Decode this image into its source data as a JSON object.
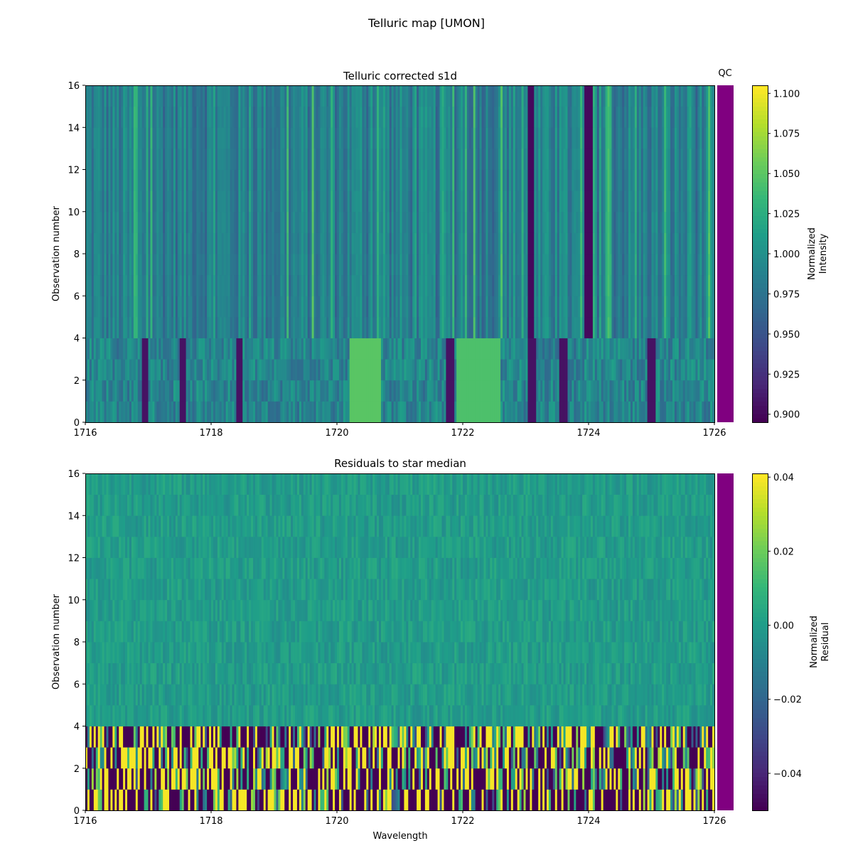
{
  "figure": {
    "title": "Telluric map [UMON]"
  },
  "chart_data": [
    {
      "type": "heatmap",
      "title": "Telluric corrected s1d",
      "xlabel": "",
      "ylabel": "Observation number",
      "xlim": [
        1716,
        1726
      ],
      "ylim": [
        0,
        16
      ],
      "xticks": [
        1716,
        1718,
        1720,
        1722,
        1724,
        1726
      ],
      "yticks": [
        0,
        2,
        4,
        6,
        8,
        10,
        12,
        14,
        16
      ],
      "colormap": "viridis",
      "color_range": [
        0.895,
        1.105
      ],
      "colorbar": {
        "label": "Normalized\nIntensity",
        "ticks": [
          "0.900",
          "0.925",
          "0.950",
          "0.975",
          "1.000",
          "1.025",
          "1.050",
          "1.075",
          "1.100"
        ],
        "tick_values": [
          0.9,
          0.925,
          0.95,
          0.975,
          1.0,
          1.025,
          1.05,
          1.075,
          1.1
        ]
      },
      "qc_label": "QC",
      "qc_color": "#800080",
      "row_groups": [
        {
          "obs_range": [
            0,
            4
          ],
          "description": "first 4 observations, deeper absorption lines"
        },
        {
          "obs_range": [
            4,
            16
          ],
          "description": "remaining observations"
        }
      ],
      "notable_lines_upper": [
        1723.1,
        1724.0
      ],
      "notable_lines_lower": [
        1716.95,
        1717.55,
        1718.45,
        1720.4,
        1721.8,
        1723.1,
        1723.6,
        1725.0
      ]
    },
    {
      "type": "heatmap",
      "title": "Residuals to star median",
      "xlabel": "Wavelength",
      "ylabel": "Observation number",
      "xlim": [
        1716,
        1726
      ],
      "ylim": [
        0,
        16
      ],
      "xticks": [
        1716,
        1718,
        1720,
        1722,
        1724,
        1726
      ],
      "yticks": [
        0,
        2,
        4,
        6,
        8,
        10,
        12,
        14,
        16
      ],
      "colormap": "viridis",
      "color_range": [
        -0.05,
        0.041
      ],
      "colorbar": {
        "label": "Normalized\nResidual",
        "ticks": [
          "−0.04",
          "−0.02",
          "0.00",
          "0.02",
          "0.04"
        ],
        "tick_values": [
          -0.04,
          -0.02,
          0.0,
          0.02,
          0.04
        ]
      },
      "qc_color": "#800080"
    }
  ]
}
